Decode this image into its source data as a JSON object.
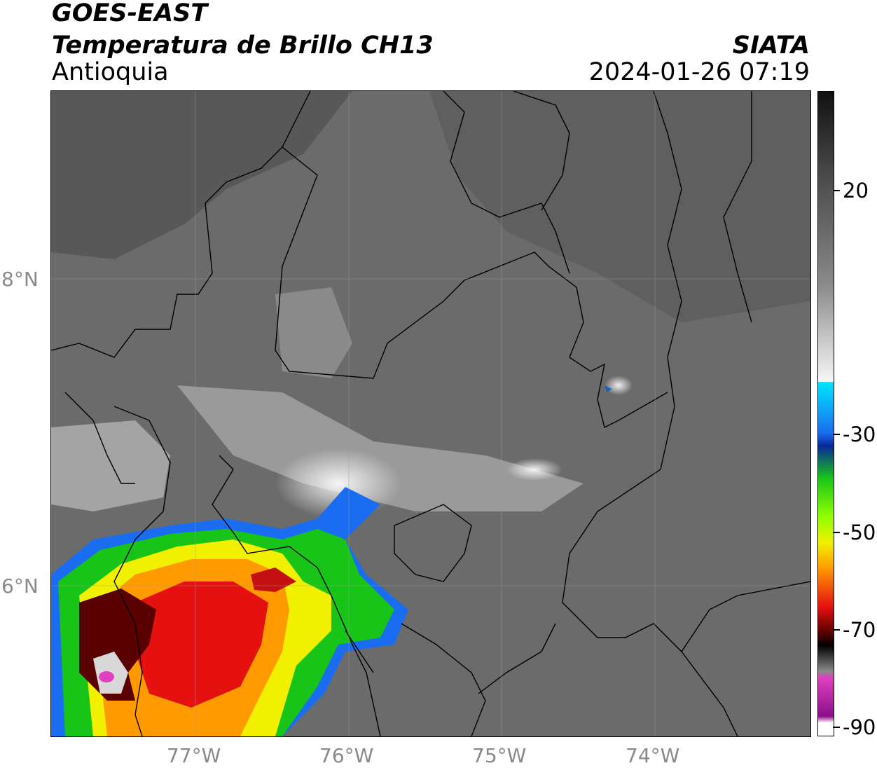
{
  "header": {
    "title_line1": "GOES-EAST",
    "title_line2": "Temperatura de Brillo CH13",
    "region": "Antioquia",
    "organization": "SIATA",
    "datetime": "2024-01-26 07:19"
  },
  "map": {
    "lat_labels": [
      "8°N",
      "6°N"
    ],
    "lon_labels": [
      "77°W",
      "76°W",
      "75°W",
      "74°W"
    ]
  },
  "colorbar": {
    "labels": [
      "20",
      "-30",
      "-50",
      "-70",
      "-90"
    ],
    "colors": {
      "warm_gray_top": "#111111",
      "mid_gray": "#7a7a7a",
      "white": "#f7f7f7",
      "cyan": "#00e5ff",
      "blue": "#06289a",
      "green": "#19c419",
      "yellow": "#f0f000",
      "orange": "#ff9a00",
      "red": "#e51010",
      "dark_red": "#5a0000",
      "black": "#000000",
      "pink": "#e040c0",
      "purple": "#8a0f8a"
    }
  }
}
